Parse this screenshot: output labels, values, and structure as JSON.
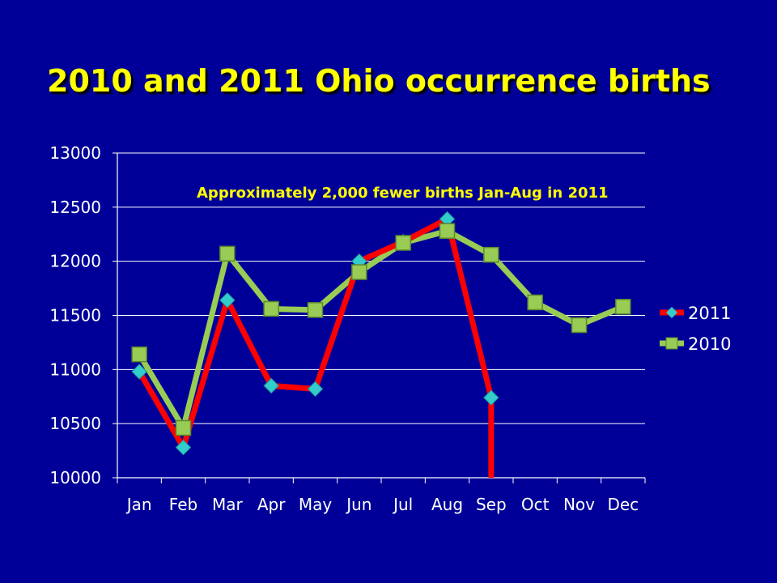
{
  "colors": {
    "background": "#000099",
    "title": "#ffff00",
    "grid": "#ffffff",
    "series_2011_line": "#ff0000",
    "series_2011_marker": "#33cccc",
    "series_2010_line": "#99cc55",
    "series_2010_marker": "#99cc55"
  },
  "chart_data": {
    "type": "line",
    "title": "2010 and 2011 Ohio occurrence births",
    "xlabel": "",
    "ylabel": "",
    "categories": [
      "Jan",
      "Feb",
      "Mar",
      "Apr",
      "May",
      "Jun",
      "Jul",
      "Aug",
      "Sep",
      "Oct",
      "Nov",
      "Dec"
    ],
    "yticks": [
      "13000",
      "12500",
      "12000",
      "11500",
      "11000",
      "10500",
      "10000"
    ],
    "ylim": [
      10000,
      13000
    ],
    "grid": "horizontal",
    "legend_position": "right",
    "annotation": "Approximately 2,000 fewer births Jan-Aug in 2011",
    "series": [
      {
        "name": "2011",
        "marker": "diamond",
        "values": [
          10980,
          10280,
          11640,
          10850,
          10820,
          12000,
          12180,
          12390,
          10740,
          null,
          null,
          null
        ],
        "tail_drop": {
          "month": "Sep",
          "to": 10000
        }
      },
      {
        "name": "2010",
        "marker": "square",
        "values": [
          11140,
          10460,
          12070,
          11560,
          11550,
          11900,
          12170,
          12280,
          12060,
          11620,
          11410,
          11580
        ]
      }
    ]
  }
}
